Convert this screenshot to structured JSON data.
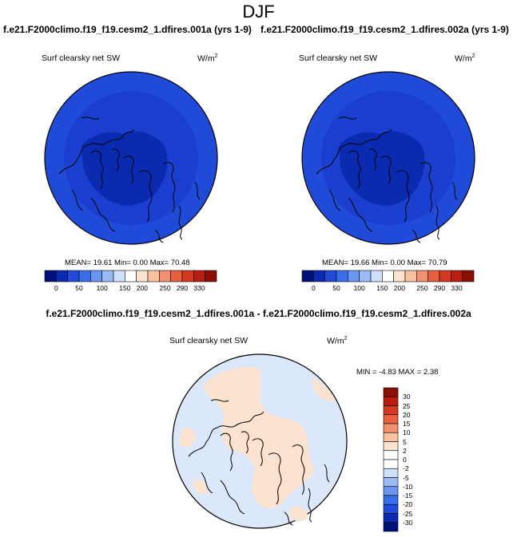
{
  "figure": {
    "title": "DJF",
    "panels": [
      {
        "case": "f.e21.F2000climo.f19_f19.cesm2_1.dfires.001a (yrs 1-9)",
        "variable": "Surf clearsky net SW",
        "units_base": "W/m",
        "units_exp": "2",
        "stats": "MEAN=  19.61  Min=   0.00  Max=  70.48",
        "colorbar_labels": [
          "0",
          "50",
          "100",
          "150",
          "200",
          "250",
          "290",
          "330"
        ]
      },
      {
        "case": "f.e21.F2000climo.f19_f19.cesm2_1.dfires.002a (yrs 1-9)",
        "variable": "Surf clearsky net SW",
        "units_base": "W/m",
        "units_exp": "2",
        "stats": "MEAN=  19.66  Min=   0.00  Max=  70.79",
        "colorbar_labels": [
          "0",
          "50",
          "100",
          "150",
          "200",
          "250",
          "290",
          "330"
        ]
      }
    ],
    "difference": {
      "title": "f.e21.F2000climo.f19_f19.cesm2_1.dfires.001a - f.e21.F2000climo.f19_f19.cesm2_1.dfires.002a",
      "variable": "Surf clearsky net SW",
      "units_base": "W/m",
      "units_exp": "2",
      "stats": "MIN =  -4.83 MAX =   2.38",
      "colorbar_labels": [
        "30",
        "25",
        "20",
        "15",
        "10",
        "5",
        "2",
        "0",
        "-2",
        "-5",
        "-10",
        "-15",
        "-20",
        "-25",
        "-30"
      ]
    }
  },
  "colors": {
    "abs_scale": [
      "#00107a",
      "#0a2bb0",
      "#1f4bd8",
      "#3a6ee8",
      "#6a96f0",
      "#9cbaf5",
      "#cfe0fb",
      "#ffffff",
      "#fce3cf",
      "#f8c2a0",
      "#f29070",
      "#e8603f",
      "#d43a22",
      "#b81e10",
      "#8c0f06"
    ],
    "diff_scale": [
      "#8c0f06",
      "#b81e10",
      "#d43a22",
      "#e8603f",
      "#f29070",
      "#f8c2a0",
      "#fce3cf",
      "#ffffff",
      "#ffffff",
      "#cfe0fb",
      "#9cbaf5",
      "#6a96f0",
      "#3a6ee8",
      "#1f4bd8",
      "#0a2bb0",
      "#00107a"
    ],
    "map_outer": "#1f4bd8",
    "map_inner": "#0a2bb0",
    "diff_base": "#dbe8fb",
    "diff_warm": "#fce3cf"
  }
}
